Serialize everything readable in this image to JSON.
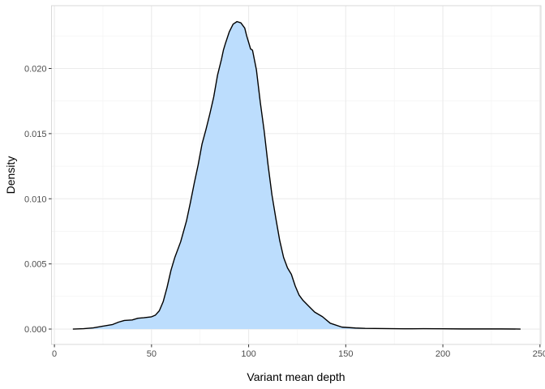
{
  "chart_data": {
    "type": "area",
    "title": "",
    "xlabel": "Variant mean depth",
    "ylabel": "Density",
    "xlim": [
      -1.5,
      250.5
    ],
    "ylim": [
      -0.00118,
      0.02482
    ],
    "x_ticks": [
      0,
      50,
      100,
      150,
      200,
      250
    ],
    "x_tick_labels": [
      "0",
      "50",
      "100",
      "150",
      "200",
      "250"
    ],
    "y_ticks": [
      0,
      0.005,
      0.01,
      0.015,
      0.02
    ],
    "y_tick_labels": [
      "0.000",
      "0.005",
      "0.010",
      "0.015",
      "0.020"
    ],
    "grid": true,
    "legend": "none",
    "series": [
      {
        "x": [
          9.5,
          15,
          20,
          25,
          30,
          33,
          36,
          40,
          43,
          46,
          50,
          52,
          54,
          56,
          58,
          60,
          62,
          65,
          68,
          70,
          72,
          74,
          76,
          78,
          80,
          82,
          84,
          86,
          87,
          88,
          90,
          92,
          94,
          96,
          98,
          99,
          100,
          101,
          102,
          104,
          106,
          108,
          110,
          112,
          114,
          116,
          118,
          120,
          122,
          124,
          126,
          128,
          130,
          134,
          138,
          142,
          148,
          155,
          160,
          170,
          180,
          190,
          200,
          210,
          220,
          230,
          240
        ],
        "y": [
          0.0,
          3e-05,
          9e-05,
          0.00022,
          0.00035,
          0.00053,
          0.00066,
          0.0007,
          0.00083,
          0.00087,
          0.00094,
          0.00107,
          0.0014,
          0.0021,
          0.0032,
          0.0045,
          0.0055,
          0.0067,
          0.0083,
          0.0097,
          0.0112,
          0.0126,
          0.0142,
          0.0153,
          0.0165,
          0.0178,
          0.0195,
          0.0207,
          0.0214,
          0.0219,
          0.0228,
          0.0234,
          0.0236,
          0.0235,
          0.0231,
          0.0225,
          0.022,
          0.0215,
          0.0214,
          0.0199,
          0.0174,
          0.0152,
          0.0126,
          0.0103,
          0.0085,
          0.0068,
          0.0055,
          0.0047,
          0.0042,
          0.0033,
          0.0026,
          0.0022,
          0.0019,
          0.0013,
          0.00095,
          0.00045,
          0.00015,
          8e-05,
          5e-05,
          4e-05,
          2e-05,
          3e-05,
          2e-05,
          1e-05,
          1e-05,
          1e-05,
          0.0
        ]
      }
    ],
    "fill_color": "#bcddfd",
    "line_color": "#000000"
  }
}
